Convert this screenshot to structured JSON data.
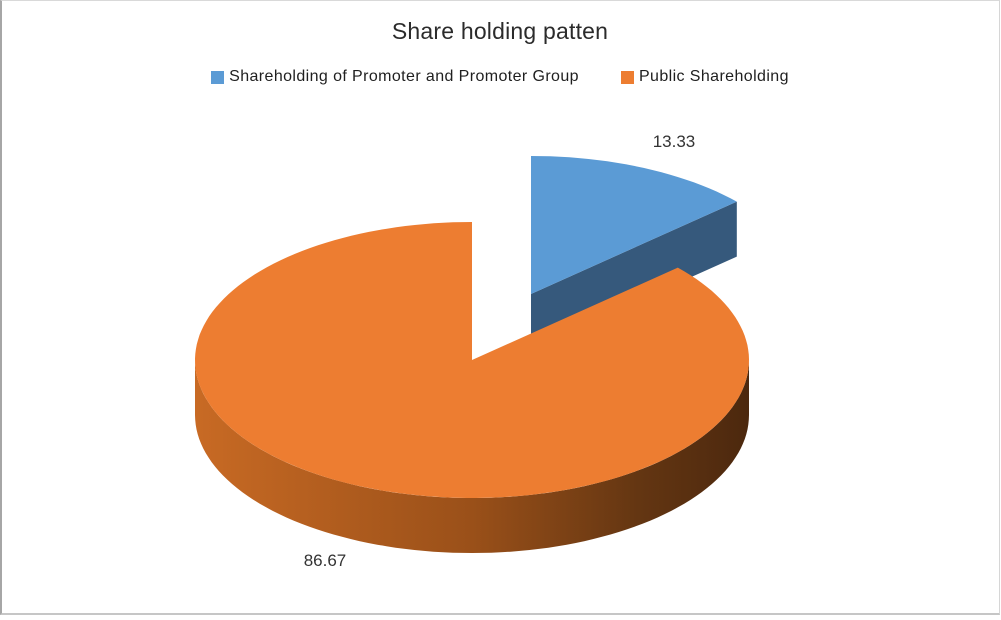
{
  "chart": {
    "title": "Share holding patten"
  },
  "legend": {
    "items": [
      {
        "label": "Shareholding of Promoter and Promoter Group",
        "color": "#5B9BD5"
      },
      {
        "label": "Public Shareholding",
        "color": "#ED7D31"
      }
    ]
  },
  "chart_data": {
    "type": "pie",
    "style": "3d-exploded-pie",
    "title": "Share holding patten",
    "categories": [
      "Shareholding of Promoter and Promoter Group",
      "Public Shareholding"
    ],
    "values": [
      13.33,
      86.67
    ],
    "data_labels": [
      "13.33",
      "86.67"
    ],
    "start_angle_deg": 90,
    "direction": "clockwise",
    "legend_position": "top",
    "exploded_slice_index": 0,
    "colors": {
      "promoter_top": "#5B9BD5",
      "promoter_side": "#36597C",
      "public_top": "#ED7D31",
      "public_side_gradient": [
        "#C86A24",
        "#9A5019",
        "#643612",
        "#4C280E"
      ]
    }
  }
}
